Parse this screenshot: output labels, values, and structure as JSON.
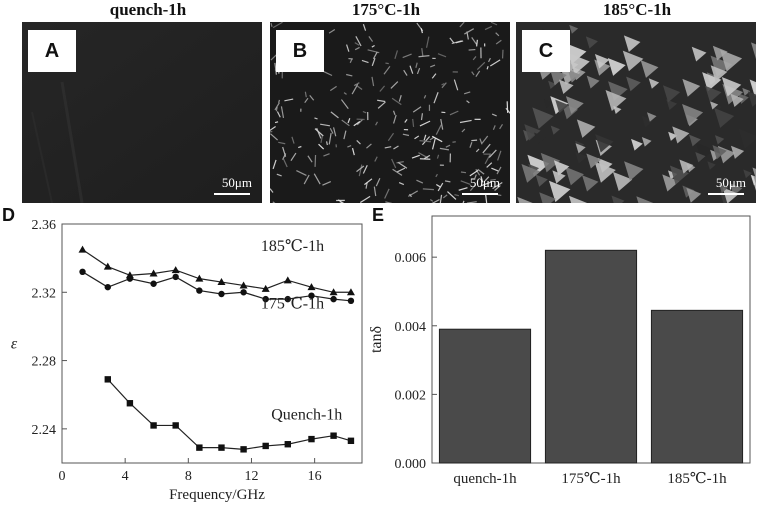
{
  "micrographs": [
    {
      "title": "quench-1h",
      "letter": "A",
      "scale": "50μm"
    },
    {
      "title": "175°C-1h",
      "letter": "B",
      "scale": "50μm"
    },
    {
      "title": "185°C-1h",
      "letter": "C",
      "scale": "50μm"
    }
  ],
  "chart_data": [
    {
      "panel": "D",
      "type": "line",
      "xlabel": "Frequency/GHz",
      "ylabel": "ε",
      "xlim": [
        0,
        19
      ],
      "ylim": [
        2.22,
        2.36
      ],
      "xticks": [
        "0",
        "4",
        "8",
        "12",
        "16"
      ],
      "yticks": [
        "2.24",
        "2.28",
        "2.32",
        "2.36"
      ],
      "series": [
        {
          "name": "185℃-1h",
          "marker": "triangle",
          "x": [
            1.3,
            2.9,
            4.3,
            5.8,
            7.2,
            8.7,
            10.1,
            11.5,
            12.9,
            14.3,
            15.8,
            17.2,
            18.3
          ],
          "y": [
            2.345,
            2.335,
            2.33,
            2.331,
            2.333,
            2.328,
            2.326,
            2.324,
            2.322,
            2.327,
            2.323,
            2.32,
            2.32
          ]
        },
        {
          "name": "175℃-1h",
          "marker": "circle",
          "x": [
            1.3,
            2.9,
            4.3,
            5.8,
            7.2,
            8.7,
            10.1,
            11.5,
            12.9,
            14.3,
            15.8,
            17.2,
            18.3
          ],
          "y": [
            2.332,
            2.323,
            2.328,
            2.325,
            2.329,
            2.321,
            2.319,
            2.32,
            2.316,
            2.316,
            2.318,
            2.316,
            2.315
          ]
        },
        {
          "name": "Quench-1h",
          "marker": "square",
          "x": [
            2.9,
            4.3,
            5.8,
            7.2,
            8.7,
            10.1,
            11.5,
            12.9,
            14.3,
            15.8,
            17.2,
            18.3
          ],
          "y": [
            2.269,
            2.255,
            2.242,
            2.242,
            2.229,
            2.229,
            2.228,
            2.23,
            2.231,
            2.234,
            2.236,
            2.233
          ]
        }
      ]
    },
    {
      "panel": "E",
      "type": "bar",
      "ylabel": "tanδ",
      "ylim": [
        0,
        0.0072
      ],
      "yticks": [
        "0.000",
        "0.002",
        "0.004",
        "0.006"
      ],
      "categories": [
        "quench-1h",
        "175℃-1h",
        "185℃-1h"
      ],
      "values": [
        0.0039,
        0.0062,
        0.00445
      ],
      "bar_color": "#4a4a4a"
    }
  ]
}
